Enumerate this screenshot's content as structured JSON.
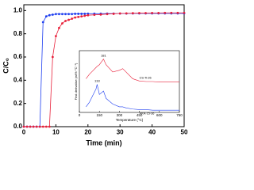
{
  "chart_data": [
    {
      "type": "line",
      "x": [
        0,
        1,
        2,
        3,
        4,
        5,
        6,
        7,
        8,
        9,
        10,
        11,
        12,
        13,
        14,
        15,
        16,
        17,
        18,
        19,
        20,
        22,
        24,
        26,
        28,
        30,
        32,
        34,
        36,
        38,
        40,
        42,
        44,
        46,
        48,
        50
      ],
      "series": [
        {
          "name": "blue",
          "color": "#1f3ff0",
          "values": [
            0,
            0,
            0,
            0,
            0,
            0,
            0.9,
            0.95,
            0.96,
            0.965,
            0.97,
            0.97,
            0.97,
            0.97,
            0.97,
            0.97,
            0.972,
            0.972,
            0.972,
            0.972,
            0.973,
            0.973,
            0.973,
            0.974,
            0.974,
            0.974,
            0.974,
            0.975,
            0.975,
            0.975,
            0.975,
            0.975,
            0.975,
            0.975,
            0.975,
            0.975
          ]
        },
        {
          "name": "red",
          "color": "#e8203a",
          "values": [
            0,
            0,
            0,
            0,
            0,
            0,
            0,
            0,
            0,
            0.6,
            0.78,
            0.85,
            0.89,
            0.91,
            0.92,
            0.93,
            0.94,
            0.945,
            0.95,
            0.955,
            0.96,
            0.963,
            0.966,
            0.97,
            0.972,
            0.975,
            0.976,
            0.977,
            0.978,
            0.978,
            0.979,
            0.979,
            0.98,
            0.98,
            0.98,
            0.98
          ]
        }
      ],
      "xlabel": "Time (min)",
      "ylabel": "C/C₀",
      "xlim": [
        0,
        50
      ],
      "xticks": [
        0,
        10,
        20,
        30,
        40,
        50
      ],
      "ylim": [
        0,
        1.05
      ],
      "yticks": [
        {
          "value": 0,
          "label": "0.0"
        },
        0.2,
        0.4,
        0.6,
        0.8,
        {
          "value": 1,
          "label": "1.0"
        }
      ]
    },
    {
      "type": "line",
      "x": [
        50,
        75,
        100,
        125,
        133,
        150,
        181,
        200,
        250,
        300,
        325,
        350,
        400,
        450,
        500,
        550,
        600,
        650,
        700,
        750
      ],
      "series": [
        {
          "name": "CS-Ti-26",
          "color": "#e8203a",
          "values": [
            0.6,
            0.68,
            0.74,
            0.8,
            0.82,
            0.85,
            0.95,
            0.85,
            0.72,
            0.75,
            0.78,
            0.72,
            0.6,
            0.56,
            0.55,
            0.55,
            0.54,
            0.54,
            0.54,
            0.54
          ]
        },
        {
          "name": "HKA-15-36",
          "color": "#1f3ff0",
          "values": [
            0.1,
            0.18,
            0.3,
            0.42,
            0.5,
            0.32,
            0.38,
            0.25,
            0.15,
            0.1,
            0.1,
            0.08,
            0.06,
            0.05,
            0.05,
            0.04,
            0.04,
            0.04,
            0.04,
            0.04
          ]
        }
      ],
      "annotations": [
        "181",
        "133"
      ],
      "xlabel": "Temperature (°C)",
      "ylabel": "First derivative (wt%·°C⁻¹)",
      "xlim": [
        0,
        750
      ],
      "xticks": [
        0,
        150,
        300,
        450,
        600,
        750
      ],
      "ylim": [
        0,
        1.1
      ]
    }
  ]
}
